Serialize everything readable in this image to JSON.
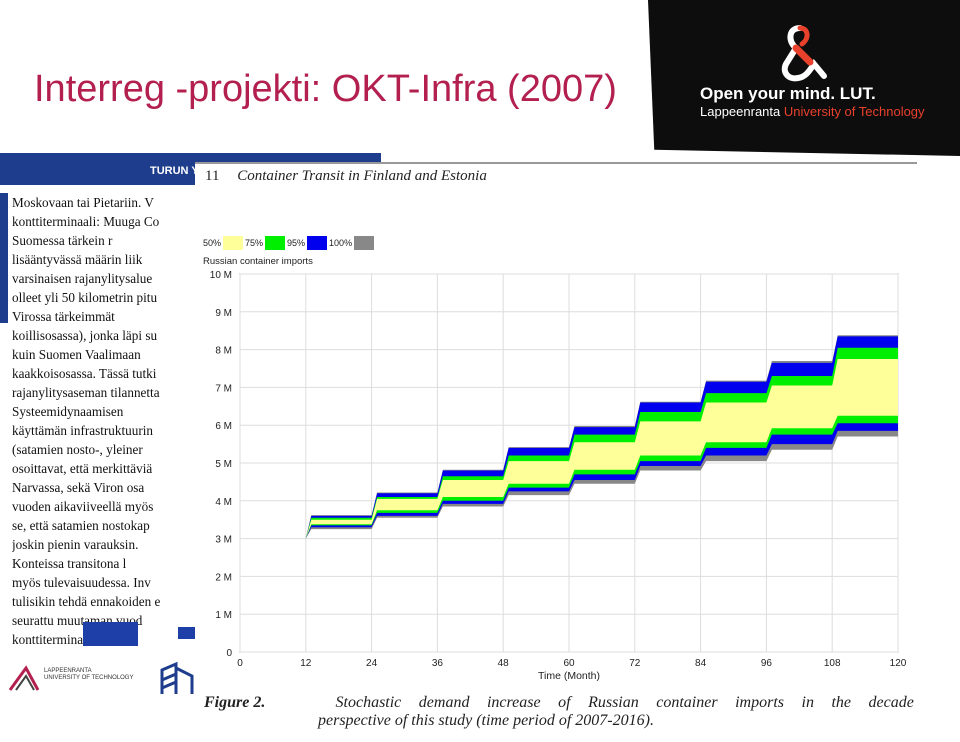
{
  "slide": {
    "title": "Interreg -projekti: OKT-Infra (2007)",
    "brand": {
      "line1": "Open your mind. LUT.",
      "line2_prefix": "Lappeenranta",
      "line2_highlight": "University of Technology",
      "logo": "lut-ampersand-logo"
    }
  },
  "background_doc": {
    "header": "TURUN Y",
    "lines": [
      "Moskovaan tai Pietariin. V",
      "konttiterminaali: Muuga Co",
      "   Suomessa tärkein r",
      "lisääntyvässä määrin liik",
      "varsinaisen rajanylitysalue",
      "olleet yli 50 kilometrin pitu",
      "   Virossa tärkeimmät",
      "koillisosassa), jonka läpi su",
      "kuin Suomen Vaalimaan",
      "kaakkoisosassa. Tässä tutki",
      "rajanylitysaseman tilannetta",
      "   Systeemidynaamisen",
      "käyttämän infrastruktuurin",
      "(satamien nosto-, yleiner",
      "osoittavat, että merkittäviä",
      "Narvassa, sekä Viron osa",
      "vuoden aikaviiveellä myös",
      "se, että satamien nostokap",
      "joskin pienin varauksin.",
      "   Konteissa transitona l",
      "myös tulevaisuudessa. Inv",
      "tulisikin tehdä ennakoiden e",
      "seurattu muutaman vuod",
      "konttiterminaal..."
    ],
    "footer_logo_text": "LAPPEENRANTA\nUNIVERSITY OF TECHNOLOGY"
  },
  "figure": {
    "number": "11",
    "heading": "Container Transit in Finland and Estonia",
    "caption_label": "Figure 2.",
    "caption_line1_words": [
      "Stochastic",
      "demand",
      "increase",
      "of",
      "Russian",
      "container",
      "imports",
      "in",
      "the",
      "decade"
    ],
    "caption_line2": "perspective of this study (time period of 2007-2016)."
  },
  "chart_data": {
    "type": "area",
    "series_label": "Russian container imports",
    "legend": [
      {
        "label": "50%",
        "color": "#ffff99"
      },
      {
        "label": "75%",
        "color": "#00ee00"
      },
      {
        "label": "95%",
        "color": "#0000ee"
      },
      {
        "label": "100%",
        "color": "#888888"
      }
    ],
    "xlabel": "Time (Month)",
    "xticks": [
      "0",
      "12",
      "24",
      "36",
      "48",
      "60",
      "72",
      "84",
      "96",
      "108",
      "120"
    ],
    "yticks": [
      "0",
      "1 M",
      "2 M",
      "3 M",
      "4 M",
      "5 M",
      "6 M",
      "7 M",
      "8 M",
      "9 M",
      "10 M"
    ],
    "xlim": [
      0,
      120
    ],
    "ylim": [
      0,
      10
    ],
    "grid": true,
    "confidence_bands_by_month": [
      {
        "month": 0,
        "p100_lo": 3.0,
        "p95_lo": 3.0,
        "p75_lo": 3.0,
        "p50_lo": 3.0,
        "p50_hi": 3.0,
        "p75_hi": 3.0,
        "p95_hi": 3.0,
        "p100_hi": 3.0
      },
      {
        "month": 12,
        "p100_lo": 3.25,
        "p95_lo": 3.3,
        "p75_lo": 3.35,
        "p50_lo": 3.38,
        "p50_hi": 3.5,
        "p75_hi": 3.55,
        "p95_hi": 3.6,
        "p100_hi": 3.62
      },
      {
        "month": 24,
        "p100_lo": 3.55,
        "p95_lo": 3.6,
        "p75_lo": 3.68,
        "p50_lo": 3.75,
        "p50_hi": 4.05,
        "p75_hi": 4.1,
        "p95_hi": 4.2,
        "p100_hi": 4.22
      },
      {
        "month": 36,
        "p100_lo": 3.85,
        "p95_lo": 3.92,
        "p75_lo": 4.0,
        "p50_lo": 4.1,
        "p50_hi": 4.55,
        "p75_hi": 4.65,
        "p95_hi": 4.8,
        "p100_hi": 4.82
      },
      {
        "month": 48,
        "p100_lo": 4.15,
        "p95_lo": 4.25,
        "p75_lo": 4.35,
        "p50_lo": 4.45,
        "p50_hi": 5.05,
        "p75_hi": 5.2,
        "p95_hi": 5.4,
        "p100_hi": 5.42
      },
      {
        "month": 60,
        "p100_lo": 4.45,
        "p95_lo": 4.55,
        "p75_lo": 4.7,
        "p50_lo": 4.82,
        "p50_hi": 5.55,
        "p75_hi": 5.75,
        "p95_hi": 5.95,
        "p100_hi": 5.98
      },
      {
        "month": 72,
        "p100_lo": 4.8,
        "p95_lo": 4.92,
        "p75_lo": 5.05,
        "p50_lo": 5.2,
        "p50_hi": 6.1,
        "p75_hi": 6.35,
        "p95_hi": 6.6,
        "p100_hi": 6.62
      },
      {
        "month": 84,
        "p100_lo": 5.05,
        "p95_lo": 5.2,
        "p75_lo": 5.4,
        "p50_lo": 5.55,
        "p50_hi": 6.6,
        "p75_hi": 6.85,
        "p95_hi": 7.15,
        "p100_hi": 7.18
      },
      {
        "month": 96,
        "p100_lo": 5.35,
        "p95_lo": 5.5,
        "p75_lo": 5.75,
        "p50_lo": 5.92,
        "p50_hi": 7.05,
        "p75_hi": 7.3,
        "p95_hi": 7.65,
        "p100_hi": 7.7
      },
      {
        "month": 108,
        "p100_lo": 5.7,
        "p95_lo": 5.85,
        "p75_lo": 6.05,
        "p50_lo": 6.25,
        "p50_hi": 7.75,
        "p75_hi": 8.05,
        "p95_hi": 8.35,
        "p100_hi": 8.38
      },
      {
        "month": 120,
        "p100_lo": 5.7,
        "p95_lo": 5.85,
        "p75_lo": 6.05,
        "p50_lo": 6.25,
        "p50_hi": 7.75,
        "p75_hi": 8.05,
        "p95_hi": 8.35,
        "p100_hi": 8.38
      }
    ]
  }
}
